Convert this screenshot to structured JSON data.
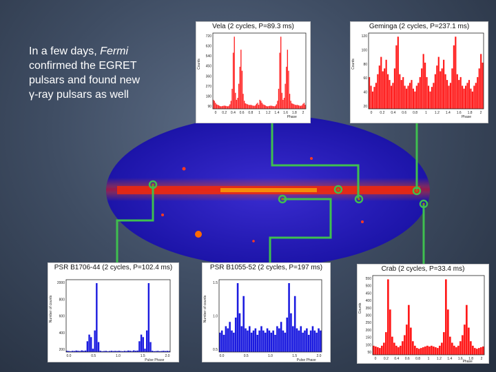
{
  "intro": {
    "line1_prefix": "In a few days, ",
    "line1_italic": "Fermi",
    "line2": "confirmed  the EGRET",
    "line3": "pulsars and found new",
    "line4": "γ-ray pulsars as well"
  },
  "colors": {
    "red_bars": "#ff1a1a",
    "blue_bars": "#1a1adf",
    "connector": "#3fbf4f"
  },
  "panels": {
    "vela": {
      "title": "Vela (2 cycles, P=89.3 ms)",
      "y_label": "Counts",
      "x_label": "Phase",
      "y_ticks": [
        "720",
        "630",
        "540",
        "450",
        "360",
        "270",
        "180",
        "90"
      ],
      "x_ticks": [
        "0",
        "0.2",
        "0.4",
        "0.6",
        "0.8",
        "1",
        "1.2",
        "1.4",
        "1.6",
        "1.8",
        "2"
      ],
      "values": [
        90,
        80,
        60,
        45,
        40,
        35,
        28,
        25,
        28,
        30,
        32,
        30,
        28,
        25,
        30,
        45,
        80,
        200,
        560,
        720,
        160,
        90,
        110,
        250,
        420,
        590,
        380,
        150,
        80,
        55,
        50,
        45,
        40,
        38,
        40,
        35,
        32,
        30,
        35,
        50,
        60,
        40,
        90,
        80,
        60,
        45,
        40,
        35,
        28,
        25,
        28,
        30,
        32,
        30,
        28,
        25,
        30,
        45,
        80,
        200,
        560,
        720,
        160,
        90,
        110,
        250,
        420,
        590,
        380,
        150,
        80,
        55,
        50,
        45,
        40,
        38,
        40,
        35,
        32,
        30,
        35,
        50,
        60,
        40
      ]
    },
    "geminga": {
      "title": "Geminga (2 cycles, P=237.1 ms)",
      "y_label": "Counts",
      "x_label": "Phase",
      "y_ticks": [
        "120",
        "100",
        "80",
        "60",
        "40",
        "20"
      ],
      "x_ticks": [
        "0",
        "0.2",
        "0.4",
        "0.6",
        "0.8",
        "1",
        "1.2",
        "1.4",
        "1.6",
        "1.8",
        "2"
      ],
      "values": [
        55,
        40,
        30,
        38,
        45,
        60,
        75,
        90,
        65,
        70,
        85,
        60,
        50,
        40,
        45,
        70,
        110,
        125,
        60,
        50,
        55,
        40,
        35,
        40,
        45,
        50,
        35,
        30,
        40,
        45,
        55,
        70,
        95,
        80,
        55,
        40,
        30,
        38,
        45,
        60,
        75,
        90,
        65,
        70,
        85,
        60,
        50,
        40,
        45,
        70,
        110,
        125,
        60,
        50,
        55,
        40,
        35,
        40,
        45,
        50,
        35,
        30,
        40,
        45,
        55,
        70,
        95,
        80
      ]
    },
    "b1706": {
      "title": "PSR B1706-44 (2 cycles, P=102.4 ms)",
      "y_label": "Number of counts",
      "x_label": "Pulse Phase",
      "y_ticks": [
        "2000",
        "800",
        "600",
        "400",
        "200"
      ],
      "x_ticks": [
        "0.0",
        "0.5",
        "1.0",
        "1.5",
        "2.0"
      ],
      "values": [
        15,
        12,
        10,
        14,
        12,
        18,
        15,
        12,
        20,
        15,
        18,
        130,
        210,
        180,
        40,
        260,
        830,
        120,
        15,
        10,
        12,
        14,
        10,
        12,
        15,
        12,
        14,
        12,
        15,
        12,
        10,
        14,
        12,
        18,
        15,
        12,
        20,
        15,
        18,
        130,
        210,
        180,
        40,
        260,
        830,
        120,
        15,
        10,
        12,
        14,
        10,
        12,
        15,
        12,
        14,
        12
      ]
    },
    "b1055": {
      "title": "PSR B1055-52 (2 cycles, P=197 ms)",
      "y_label": "Number of counts",
      "x_label": "Pulse Phase",
      "y_ticks": [
        "1.5",
        "1.0",
        "0.5"
      ],
      "x_ticks": [
        "0.0",
        "0.5",
        "1.0",
        "1.5",
        "2.0"
      ],
      "values": [
        0.45,
        0.5,
        0.4,
        0.6,
        0.55,
        0.7,
        0.5,
        0.45,
        0.8,
        1.6,
        0.9,
        0.6,
        1.3,
        0.55,
        0.5,
        0.6,
        0.45,
        0.5,
        0.55,
        0.4,
        0.5,
        0.6,
        0.5,
        0.45,
        0.55,
        0.5,
        0.45,
        0.5,
        0.4,
        0.6,
        0.55,
        0.7,
        0.5,
        0.45,
        0.8,
        1.6,
        0.9,
        0.6,
        1.3,
        0.55,
        0.5,
        0.6,
        0.45,
        0.5,
        0.55,
        0.4,
        0.5,
        0.6,
        0.5,
        0.45,
        0.55,
        0.5
      ]
    },
    "crab": {
      "title": "Crab (2 cycles, P=33.4 ms)",
      "y_label": "Counts",
      "x_label": "Phase",
      "y_ticks": [
        "550",
        "500",
        "450",
        "400",
        "350",
        "300",
        "250",
        "200",
        "150",
        "100",
        "50"
      ],
      "x_ticks": [
        "0",
        "0.2",
        "0.4",
        "0.6",
        "0.8",
        "1",
        "1.2",
        "1.4",
        "1.6",
        "1.8",
        "2"
      ],
      "values": [
        60,
        55,
        50,
        45,
        60,
        80,
        150,
        500,
        300,
        120,
        80,
        60,
        50,
        60,
        90,
        130,
        200,
        330,
        180,
        90,
        60,
        45,
        40,
        45,
        50,
        55,
        60,
        55,
        60,
        55,
        50,
        45,
        60,
        80,
        150,
        500,
        300,
        120,
        80,
        60,
        50,
        60,
        90,
        130,
        200,
        330,
        180,
        90,
        60,
        45,
        40,
        45,
        50,
        55
      ]
    }
  }
}
